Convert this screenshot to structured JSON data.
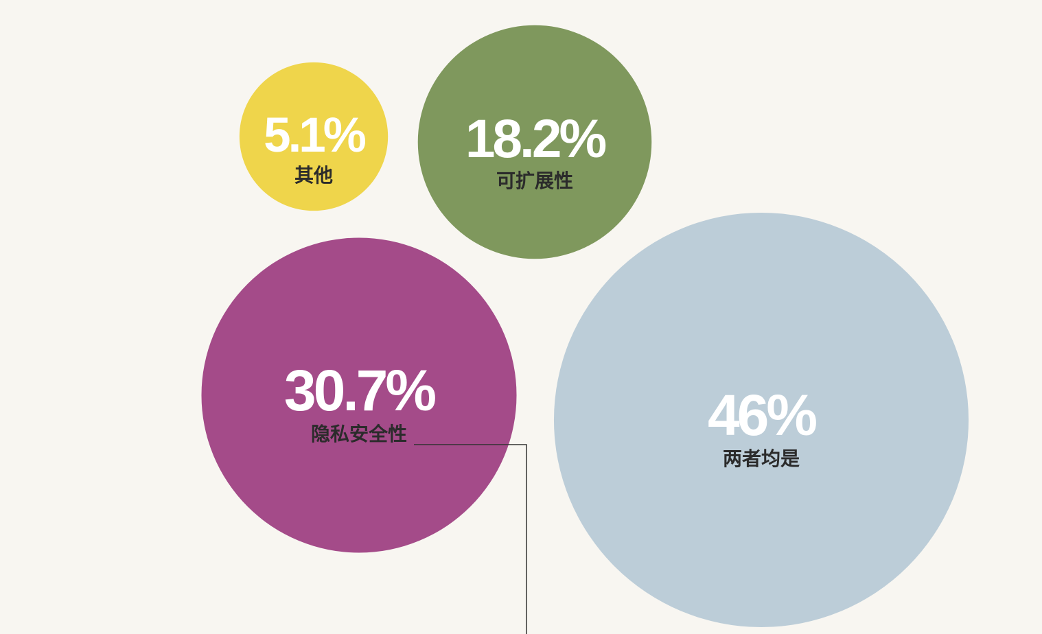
{
  "chart_data": {
    "type": "bubble",
    "categories": [
      "其他",
      "可扩展性",
      "隐私安全性",
      "两者均是"
    ],
    "values": [
      5.1,
      18.2,
      30.7,
      46
    ],
    "value_labels": [
      "5.1%",
      "18.2%",
      "30.7%",
      "46%"
    ],
    "colors": [
      "#efd54b",
      "#7f985d",
      "#a44b89",
      "#bccdd8"
    ]
  }
}
